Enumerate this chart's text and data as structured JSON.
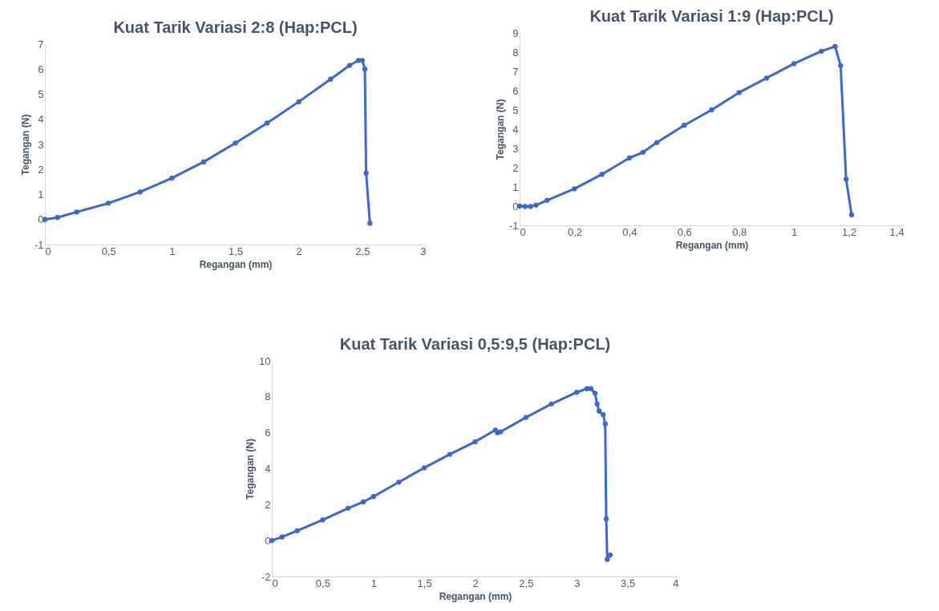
{
  "chart_data": [
    {
      "type": "line",
      "title": "Kuat Tarik Variasi 2:8 (Hap:PCL)",
      "xlabel": "Regangan (mm)",
      "ylabel": "Tegangan (N)",
      "marker": "circle",
      "grid": false,
      "series": [
        {
          "color": "#3a68d0",
          "x": [
            0,
            0.1,
            0.25,
            0.5,
            0.75,
            1,
            1.25,
            1.5,
            1.75,
            2,
            2.25,
            2.4,
            2.47,
            2.5,
            2.52,
            2.53,
            2.56
          ],
          "values": [
            0,
            0.08,
            0.3,
            0.65,
            1.1,
            1.65,
            2.3,
            3.05,
            3.85,
            4.7,
            5.6,
            6.15,
            6.35,
            6.35,
            6.0,
            1.85,
            -0.15
          ]
        }
      ],
      "xlim": [
        0,
        3
      ],
      "xticks": [
        0,
        {
          "value": 0.5,
          "label": "0,5"
        },
        1,
        {
          "value": 1.5,
          "label": "1,5"
        },
        2,
        {
          "value": 2.5,
          "label": "2,5"
        },
        3
      ],
      "ylim": [
        -1,
        7
      ],
      "yticks": [
        -1,
        0,
        1,
        2,
        3,
        4,
        5,
        6,
        7
      ]
    },
    {
      "type": "line",
      "title": "Kuat Tarik Variasi 1:9 (Hap:PCL)",
      "xlabel": "Regangan (mm)",
      "ylabel": "Tegangan (N)",
      "marker": "circle",
      "grid": false,
      "series": [
        {
          "color": "#3a68d0",
          "x": [
            0,
            0.02,
            0.04,
            0.06,
            0.1,
            0.2,
            0.3,
            0.4,
            0.45,
            0.5,
            0.6,
            0.7,
            0.8,
            0.9,
            1.0,
            1.1,
            1.15,
            1.17,
            1.19,
            1.21
          ],
          "values": [
            0,
            -0.02,
            -0.02,
            0.05,
            0.3,
            0.9,
            1.65,
            2.5,
            2.8,
            3.3,
            4.2,
            5.0,
            5.9,
            6.65,
            7.4,
            8.05,
            8.3,
            7.3,
            1.4,
            -0.45
          ]
        }
      ],
      "xlim": [
        0,
        1.4
      ],
      "xticks": [
        0,
        {
          "value": 0.2,
          "label": "0,2"
        },
        {
          "value": 0.4,
          "label": "0,4"
        },
        {
          "value": 0.6,
          "label": "0,6"
        },
        {
          "value": 0.8,
          "label": "0,8"
        },
        1,
        {
          "value": 1.2,
          "label": "1,2"
        },
        {
          "value": 1.4,
          "label": "1,4"
        }
      ],
      "ylim": [
        -1,
        9
      ],
      "yticks": [
        -1,
        0,
        1,
        2,
        3,
        4,
        5,
        6,
        7,
        8,
        9
      ]
    },
    {
      "type": "line",
      "title": "Kuat Tarik Variasi 0,5:9,5 (Hap:PCL)",
      "xlabel": "Regangan (mm)",
      "ylabel": "Tegangan (N)",
      "marker": "circle",
      "grid": false,
      "series": [
        {
          "color": "#3a68d0",
          "x": [
            0,
            0.1,
            0.25,
            0.5,
            0.75,
            0.9,
            1,
            1.25,
            1.5,
            1.75,
            2,
            2.2,
            2.22,
            2.25,
            2.5,
            2.75,
            3,
            3.1,
            3.14,
            3.18,
            3.2,
            3.22,
            3.26,
            3.28,
            3.29,
            3.3,
            3.33
          ],
          "values": [
            0,
            0.2,
            0.55,
            1.15,
            1.8,
            2.15,
            2.45,
            3.25,
            4.05,
            4.8,
            5.5,
            6.15,
            6.0,
            6.05,
            6.85,
            7.6,
            8.25,
            8.45,
            8.45,
            8.2,
            7.6,
            7.2,
            7.0,
            6.5,
            1.2,
            -1.05,
            -0.8
          ]
        }
      ],
      "xlim": [
        0,
        4
      ],
      "xticks": [
        0,
        {
          "value": 0.5,
          "label": "0,5"
        },
        1,
        {
          "value": 1.5,
          "label": "1,5"
        },
        2,
        {
          "value": 2.5,
          "label": "2,5"
        },
        3,
        {
          "value": 3.5,
          "label": "3,5"
        },
        4
      ],
      "ylim": [
        -2,
        10
      ],
      "yticks": [
        -2,
        0,
        2,
        4,
        6,
        8,
        10
      ]
    }
  ]
}
